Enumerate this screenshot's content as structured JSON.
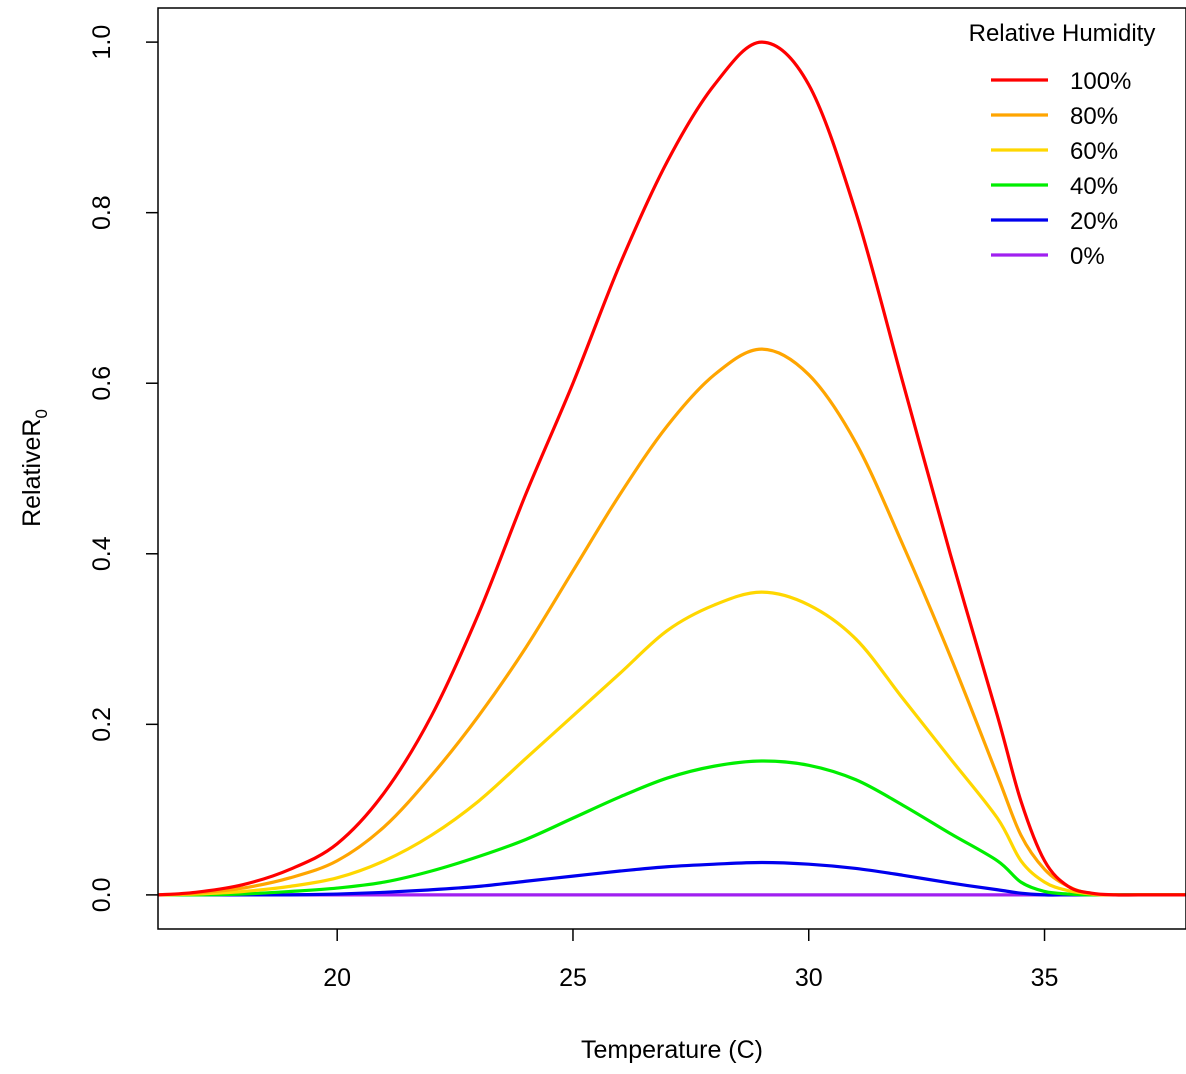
{
  "chart_data": {
    "type": "line",
    "xlabel": "Temperature (C)",
    "ylabel_main": "Relative",
    "ylabel_symbol": "R",
    "ylabel_subscript": "0",
    "xlim": [
      16.2,
      38
    ],
    "ylim": [
      -0.04,
      1.04
    ],
    "xticks": [
      20,
      25,
      30,
      35
    ],
    "yticks": [
      0.0,
      0.2,
      0.4,
      0.6,
      0.8,
      1.0
    ],
    "xtick_labels": [
      "20",
      "25",
      "30",
      "35"
    ],
    "ytick_labels": [
      "0.0",
      "0.2",
      "0.4",
      "0.6",
      "0.8",
      "1.0"
    ],
    "grid": false,
    "legend_title": "Relative Humidity",
    "legend_position": "top-right",
    "x": [
      16.2,
      17,
      18,
      19,
      20,
      21,
      22,
      23,
      24,
      25,
      26,
      27,
      28,
      29,
      30,
      31,
      32,
      33,
      34,
      34.5,
      35,
      35.5,
      36,
      36.5,
      37,
      38
    ],
    "series": [
      {
        "name": "100%",
        "color": "#ff0000",
        "values": [
          0.0,
          0.003,
          0.012,
          0.03,
          0.06,
          0.12,
          0.21,
          0.33,
          0.47,
          0.6,
          0.74,
          0.86,
          0.95,
          1.0,
          0.95,
          0.8,
          0.6,
          0.4,
          0.21,
          0.11,
          0.04,
          0.01,
          0.002,
          0.0,
          0.0,
          0.0
        ]
      },
      {
        "name": "80%",
        "color": "#ffa500",
        "values": [
          0.0,
          0.002,
          0.008,
          0.02,
          0.04,
          0.08,
          0.14,
          0.21,
          0.29,
          0.38,
          0.47,
          0.55,
          0.61,
          0.64,
          0.61,
          0.53,
          0.41,
          0.28,
          0.14,
          0.07,
          0.03,
          0.01,
          0.001,
          0.0,
          0.0,
          0.0
        ]
      },
      {
        "name": "60%",
        "color": "#ffd700",
        "values": [
          0.0,
          0.001,
          0.004,
          0.01,
          0.02,
          0.04,
          0.07,
          0.11,
          0.16,
          0.21,
          0.26,
          0.31,
          0.34,
          0.355,
          0.34,
          0.3,
          0.23,
          0.16,
          0.09,
          0.04,
          0.015,
          0.005,
          0.001,
          0.0,
          0.0,
          0.0
        ]
      },
      {
        "name": "40%",
        "color": "#00ee00",
        "values": [
          0.0,
          0.0,
          0.001,
          0.004,
          0.008,
          0.015,
          0.028,
          0.045,
          0.065,
          0.09,
          0.115,
          0.137,
          0.151,
          0.157,
          0.152,
          0.135,
          0.105,
          0.072,
          0.04,
          0.015,
          0.004,
          0.001,
          0.0,
          0.0,
          0.0,
          0.0
        ]
      },
      {
        "name": "20%",
        "color": "#0000ee",
        "values": [
          0.0,
          0.0,
          0.0,
          0.0,
          0.001,
          0.003,
          0.006,
          0.01,
          0.016,
          0.022,
          0.028,
          0.033,
          0.036,
          0.038,
          0.036,
          0.031,
          0.023,
          0.014,
          0.006,
          0.002,
          0.0,
          0.0,
          0.0,
          0.0,
          0.0,
          0.0
        ]
      },
      {
        "name": "0%",
        "color": "#a020f0",
        "values": [
          0.0,
          0.0,
          0.0,
          0.0,
          0.0,
          0.0,
          0.0,
          0.0,
          0.0,
          0.0,
          0.0,
          0.0,
          0.0,
          0.0,
          0.0,
          0.0,
          0.0,
          0.0,
          0.0,
          0.0,
          0.0,
          0.0,
          0.0,
          0.0,
          0.0,
          0.0
        ]
      }
    ]
  }
}
